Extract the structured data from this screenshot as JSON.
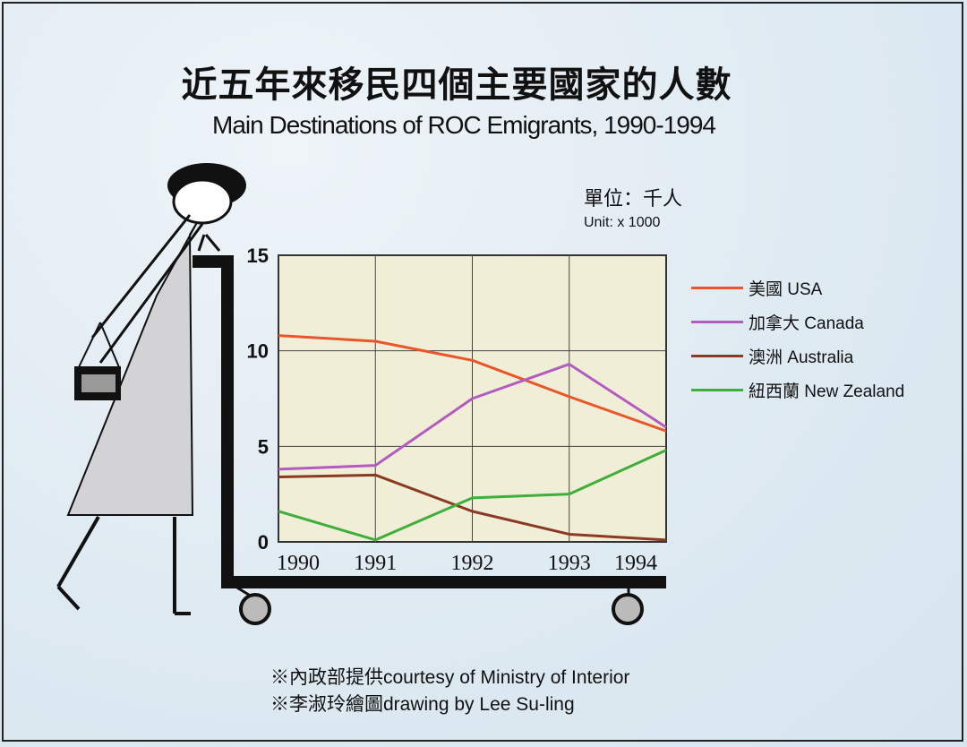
{
  "title_zh": "近五年來移民四個主要國家的人數",
  "title_en": "Main Destinations of ROC Emigrants, 1990-1994",
  "unit_zh": "單位：千人",
  "unit_en": "Unit: x 1000",
  "credits": [
    "※內政部提供courtesy of Ministry of Interior",
    "※李淑玲繪圖drawing by Lee Su-ling"
  ],
  "chart_data": {
    "type": "line",
    "title": "Main Destinations of ROC Emigrants, 1990-1994",
    "x": [
      "1990",
      "1991",
      "1992",
      "1993",
      "1994"
    ],
    "y_ticks": [
      "0",
      "5",
      "10",
      "15"
    ],
    "ylim": [
      0,
      15
    ],
    "grid": true,
    "legend_position": "right",
    "series": [
      {
        "name": "美國 USA",
        "color": "#e8562a",
        "values": [
          10.8,
          10.5,
          9.5,
          7.6,
          5.8
        ]
      },
      {
        "name": "加拿大 Canada",
        "color": "#b35cc0",
        "values": [
          3.8,
          4.0,
          7.5,
          9.3,
          6.0
        ]
      },
      {
        "name": "澳洲 Australia",
        "color": "#8a3a22",
        "values": [
          3.4,
          3.5,
          1.6,
          0.4,
          0.1
        ]
      },
      {
        "name": "紐西蘭 New Zealand",
        "color": "#3fae3a",
        "values": [
          1.6,
          0.1,
          2.3,
          2.5,
          4.8
        ]
      }
    ]
  }
}
